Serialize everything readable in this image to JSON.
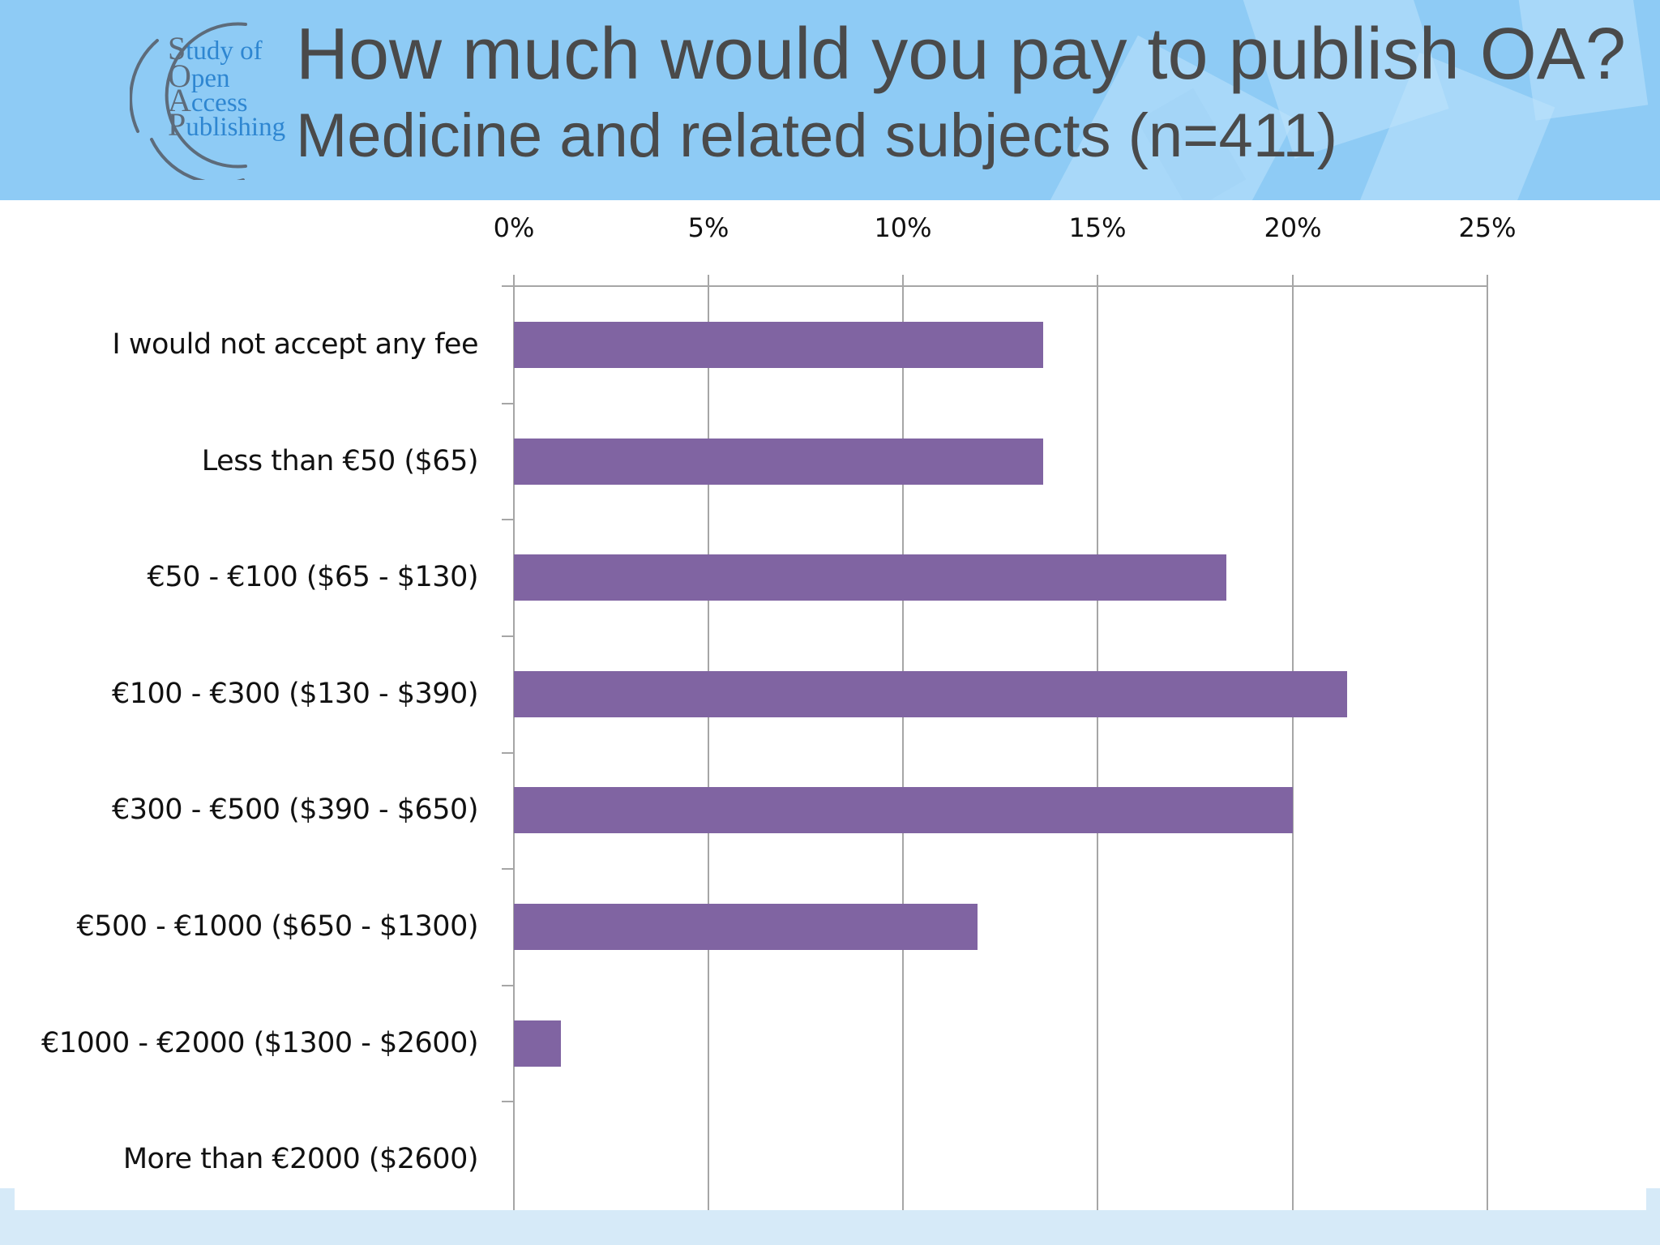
{
  "header": {
    "logo": {
      "lines": [
        {
          "cap": "S",
          "rest": "tudy of"
        },
        {
          "cap": "O",
          "rest": "pen"
        },
        {
          "cap": "A",
          "rest": "ccess"
        },
        {
          "cap": "P",
          "rest": "ublishing"
        }
      ],
      "arc_color": "#5d6b7a",
      "cap_color": "#5d6b7a",
      "text_color": "#2e86d1"
    },
    "title": "How much would you pay to publish OA?",
    "subtitle": "Medicine and related subjects (n=411)",
    "background_color": "#8ecbf5"
  },
  "chart_data": {
    "type": "bar",
    "orientation": "horizontal",
    "title": "How much would you pay to publish OA?",
    "subtitle": "Medicine and related subjects (n=411)",
    "xlabel": "",
    "ylabel": "",
    "x_axis_position": "top",
    "xlim": [
      0,
      25
    ],
    "x_ticks": [
      "0%",
      "5%",
      "10%",
      "15%",
      "20%",
      "25%"
    ],
    "grid": true,
    "legend": null,
    "bar_color": "#8064a2",
    "categories": [
      "I would not accept any fee",
      "Less than €50 ($65)",
      "€50 - €100 ($65 - $130)",
      "€100 - €300 ($130 - $390)",
      "€300 - €500 ($390 - $650)",
      "€500 - €1000 ($650 - $1300)",
      "€1000 - €2000 ($1300 - $2600)",
      "More than €2000 ($2600)"
    ],
    "values": [
      13.6,
      13.6,
      18.3,
      21.4,
      20.0,
      11.9,
      1.2,
      0.0
    ],
    "unit": "%"
  }
}
